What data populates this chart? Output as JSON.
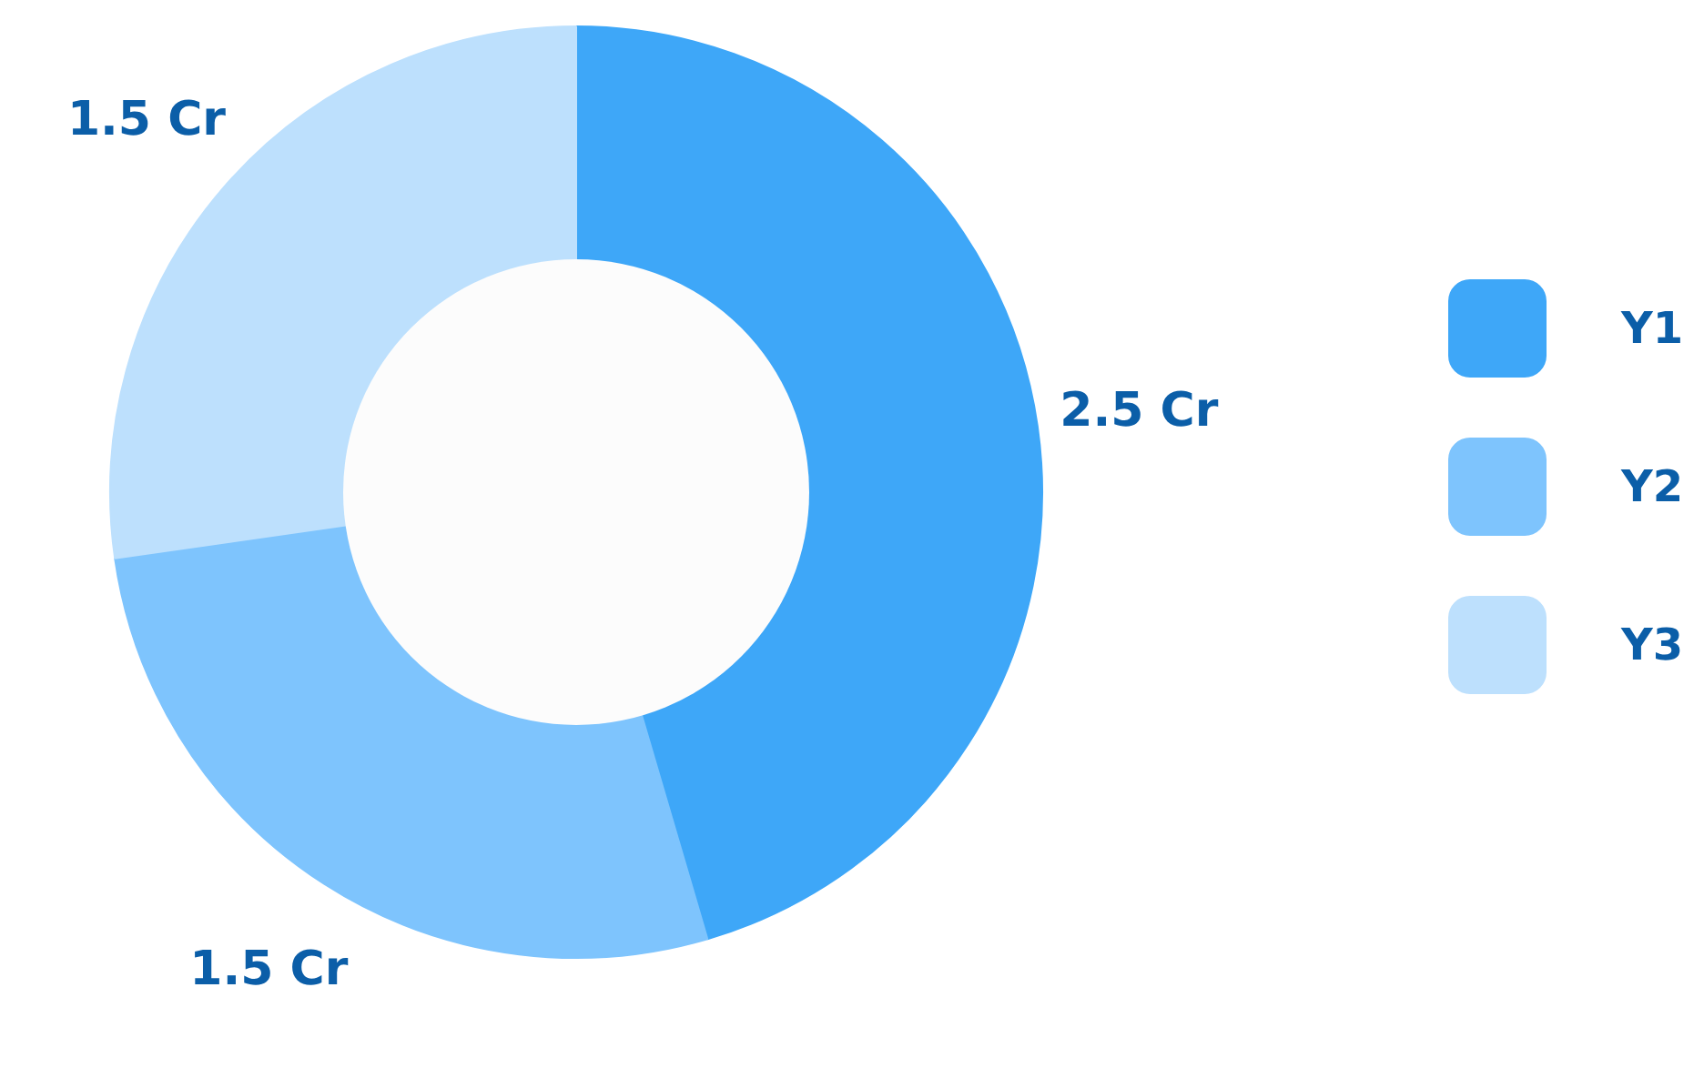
{
  "chart_data": {
    "type": "donut",
    "categories": [
      "Y1",
      "Y2",
      "Y3"
    ],
    "values": [
      2.5,
      1.5,
      1.5
    ],
    "colors": [
      "#3ea7f8",
      "#7ec4fd",
      "#bde0fd"
    ],
    "value_labels": [
      "2.5 Cr",
      "1.5 Cr",
      "1.5 Cr"
    ],
    "legend": "right"
  }
}
